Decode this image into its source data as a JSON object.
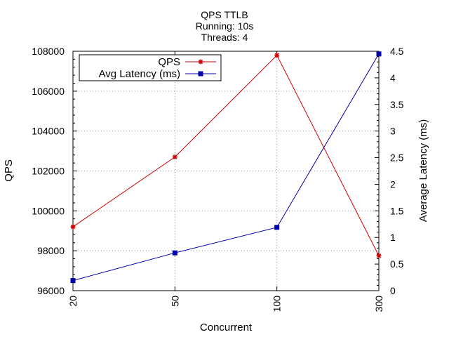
{
  "chart_data": {
    "type": "line",
    "title_lines": [
      "QPS  TTLB",
      "Running: 10s",
      "Threads: 4"
    ],
    "xlabel": "Concurrent",
    "ylabel_left": "QPS",
    "ylabel_right": "Average Latency (ms)",
    "categories": [
      "20",
      "50",
      "100",
      "300"
    ],
    "ylim_left": [
      96000,
      108000
    ],
    "yticks_left": [
      "96000",
      "98000",
      "100000",
      "102000",
      "104000",
      "106000",
      "108000"
    ],
    "ylim_right": [
      0,
      4.5
    ],
    "yticks_right": [
      "0",
      "0.5",
      "1",
      "1.5",
      "2",
      "2.5",
      "3",
      "3.5",
      "4",
      "4.5"
    ],
    "grid": true,
    "legend_position": "top-left",
    "series": [
      {
        "name": "QPS",
        "axis": "left",
        "color": "#cc0000",
        "marker": "star",
        "values": [
          99200,
          102700,
          107800,
          97750
        ]
      },
      {
        "name": "Avg Latency (ms)",
        "axis": "right",
        "color": "#0000aa",
        "marker": "square",
        "values": [
          0.19,
          0.71,
          1.19,
          4.45
        ]
      }
    ]
  }
}
